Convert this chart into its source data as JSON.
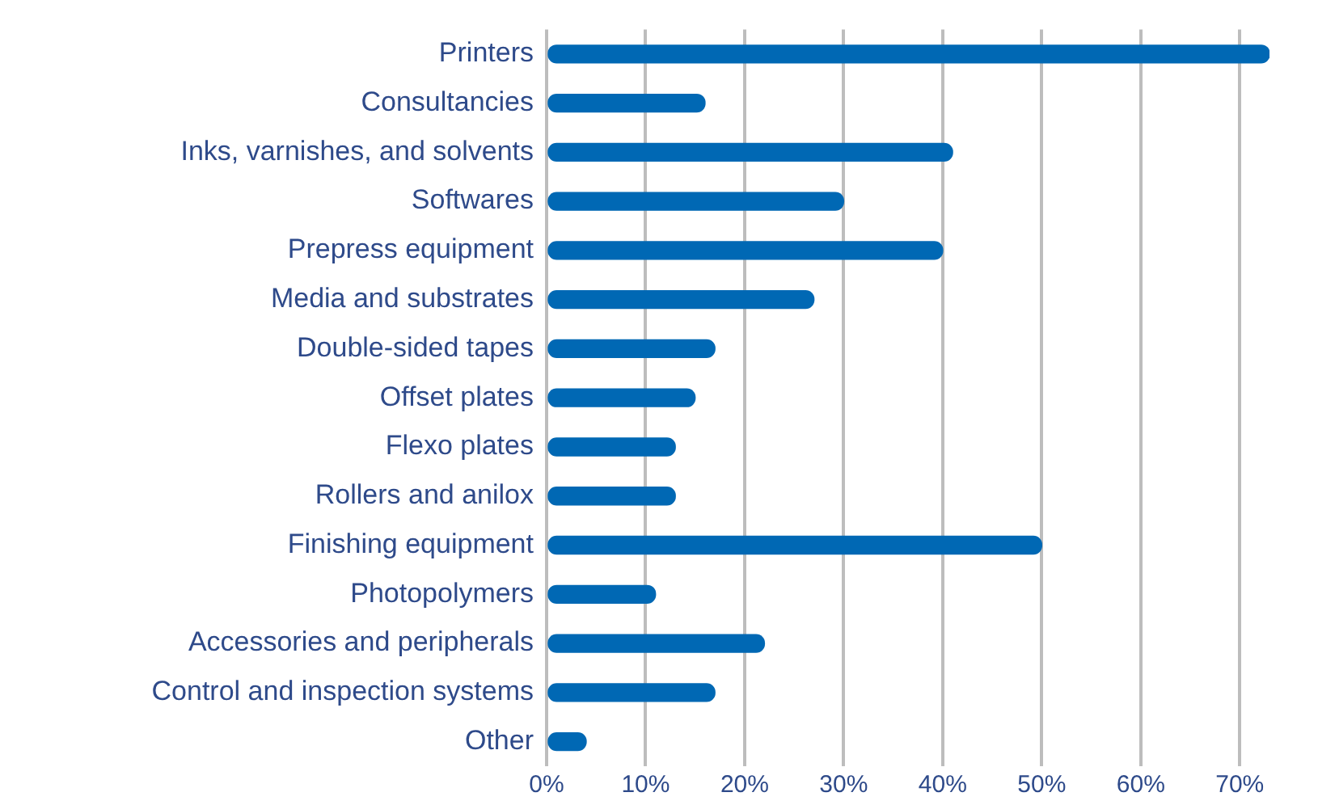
{
  "chart_data": {
    "type": "bar",
    "orientation": "horizontal",
    "categories": [
      "Printers",
      "Consultancies",
      "Inks, varnishes, and solvents",
      "Softwares",
      "Prepress equipment",
      "Media and substrates",
      "Double-sided tapes",
      "Offset plates",
      "Flexo plates",
      "Rollers and anilox",
      "Finishing equipment",
      "Photopolymers",
      "Accessories and peripherals",
      "Control and inspection systems",
      "Other"
    ],
    "values": [
      73,
      16,
      41,
      30,
      40,
      27,
      17,
      15,
      13,
      13,
      50,
      11,
      22,
      17,
      4
    ],
    "color": "#0068b4",
    "xticks": [
      {
        "value": 0,
        "label": "0%"
      },
      {
        "value": 10,
        "label": "10%"
      },
      {
        "value": 20,
        "label": "20%"
      },
      {
        "value": 30,
        "label": "30%"
      },
      {
        "value": 40,
        "label": "40%"
      },
      {
        "value": 50,
        "label": "50%"
      },
      {
        "value": 60,
        "label": "60%"
      },
      {
        "value": 70,
        "label": "70%"
      }
    ],
    "xlim": [
      0,
      73
    ],
    "grid": "x",
    "legend": false
  }
}
